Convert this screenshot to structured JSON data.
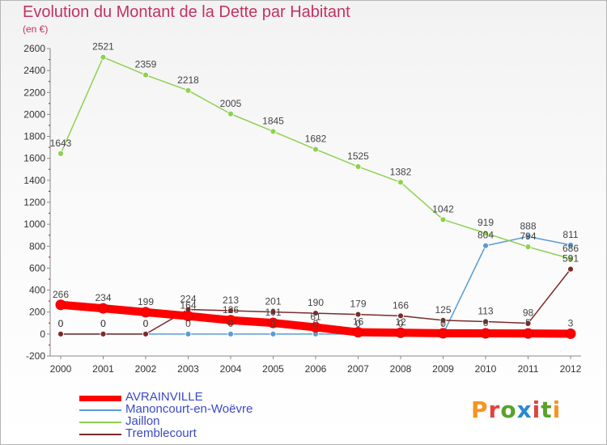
{
  "chart_data": {
    "type": "line",
    "title": "Evolution du Montant de la Dette par Habitant",
    "subtitle": "(en €)",
    "x": [
      "2000",
      "2001",
      "2002",
      "2003",
      "2004",
      "2005",
      "2006",
      "2007",
      "2008",
      "2009",
      "2010",
      "2011",
      "2012"
    ],
    "ylim": [
      -200,
      2600
    ],
    "yticks": [
      -200,
      0,
      200,
      400,
      600,
      800,
      1000,
      1200,
      1400,
      1600,
      1800,
      2000,
      2200,
      2400,
      2600
    ],
    "grid": false,
    "legend_position": "bottom-left",
    "series": [
      {
        "name": "AVRAINVILLE",
        "color": "#ff0000",
        "values": [
          266,
          234,
          199,
          164,
          126,
          101,
          61,
          16,
          12,
          7,
          6,
          5,
          3
        ],
        "labels": [
          "266",
          "234",
          "199",
          "164",
          "126",
          "101",
          "61",
          "16",
          "12",
          "7",
          "6",
          "5",
          "3"
        ]
      },
      {
        "name": "Manoncourt-en-Woëvre",
        "color": "#5b9bd5",
        "values": [
          0,
          0,
          0,
          0,
          0,
          0,
          0,
          0,
          0,
          0,
          804,
          888,
          811
        ],
        "labels": [
          "0",
          "0",
          "0",
          "0",
          "0",
          "0",
          "0",
          "0",
          "0",
          "0",
          "804",
          "888",
          "811"
        ]
      },
      {
        "name": "Jaillon",
        "color": "#8fd14f",
        "values": [
          1643,
          2521,
          2359,
          2218,
          2005,
          1845,
          1682,
          1525,
          1382,
          1042,
          919,
          794,
          686
        ],
        "labels": [
          "1643",
          "2521",
          "2359",
          "2218",
          "2005",
          "1845",
          "1682",
          "1525",
          "1382",
          "1042",
          "919",
          "794",
          "686"
        ]
      },
      {
        "name": "Tremblecourt",
        "color": "#7b2b2b",
        "values": [
          0,
          0,
          0,
          224,
          213,
          201,
          190,
          179,
          166,
          125,
          113,
          98,
          591
        ],
        "labels": [
          "0",
          "0",
          "0",
          "224",
          "213",
          "201",
          "190",
          "179",
          "166",
          "125",
          "113",
          "98",
          "591"
        ]
      }
    ]
  },
  "logo": {
    "text": "Proxiti",
    "colors": [
      "#f7941d",
      "#e2423b",
      "#5aa02c",
      "#2a8ad1",
      "#e2423b",
      "#5aa02c",
      "#f7941d"
    ]
  }
}
